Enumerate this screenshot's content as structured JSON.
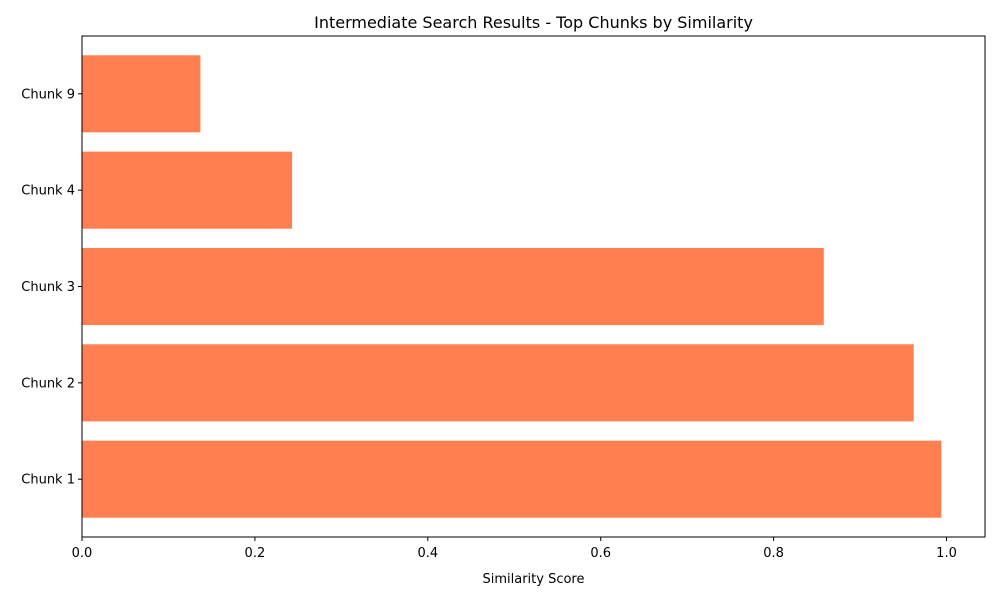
{
  "chart_data": {
    "type": "bar",
    "orientation": "horizontal",
    "title": "Intermediate Search Results - Top Chunks by Similarity",
    "xlabel": "Similarity Score",
    "ylabel": "",
    "categories": [
      "Chunk 1",
      "Chunk 2",
      "Chunk 3",
      "Chunk 4",
      "Chunk 9"
    ],
    "values": [
      0.994,
      0.962,
      0.858,
      0.243,
      0.137
    ],
    "xlim": [
      0,
      1.0445
    ],
    "xticks": [
      0.0,
      0.2,
      0.4,
      0.6,
      0.8,
      1.0
    ],
    "xtick_labels": [
      "0.0",
      "0.2",
      "0.4",
      "0.6",
      "0.8",
      "1.0"
    ],
    "bar_color": "#ff7f50",
    "grid": false,
    "legend": "none"
  }
}
